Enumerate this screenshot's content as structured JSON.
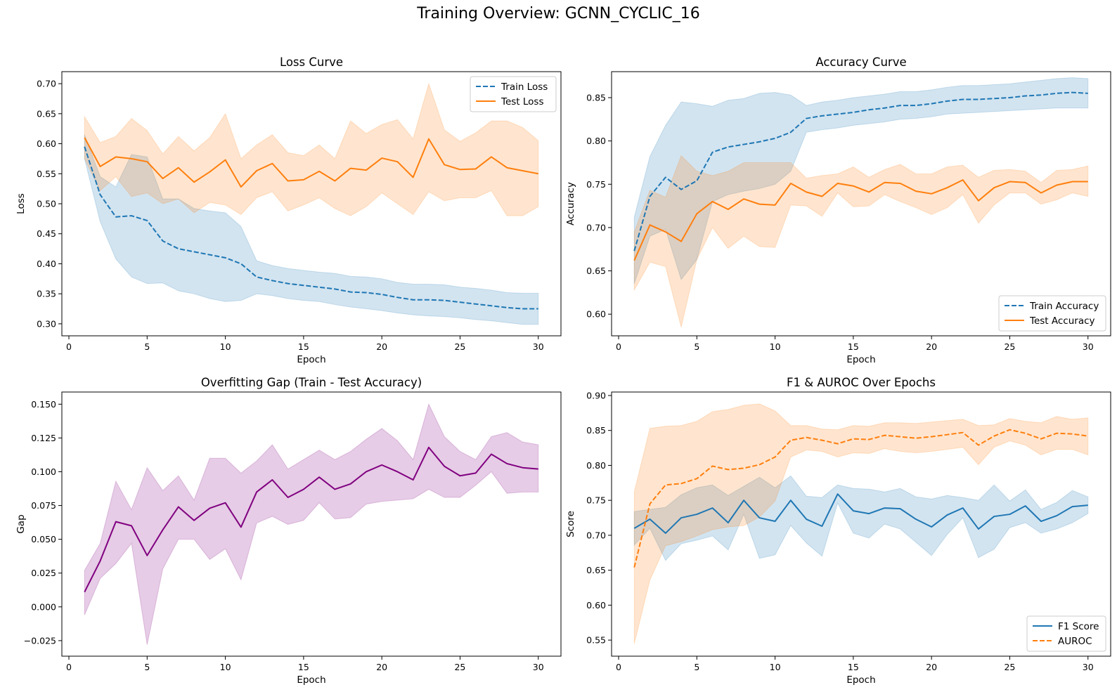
{
  "figure": {
    "suptitle": "Training Overview: GCNN_CYCLIC_16"
  },
  "colors": {
    "blue": "#1f77b4",
    "orange": "#ff7f0e",
    "purple": "#800080"
  },
  "chart_data": [
    {
      "id": "loss",
      "type": "line",
      "title": "Loss Curve",
      "xlabel": "Epoch",
      "ylabel": "Loss",
      "xlim": [
        -0.45,
        31.45
      ],
      "ylim": [
        0.28,
        0.72
      ],
      "xticks": [
        0,
        5,
        10,
        15,
        20,
        25,
        30
      ],
      "yticks": [
        0.3,
        0.35,
        0.4,
        0.45,
        0.5,
        0.55,
        0.6,
        0.65,
        0.7
      ],
      "ytick_labels": [
        "0.30",
        "0.35",
        "0.40",
        "0.45",
        "0.50",
        "0.55",
        "0.60",
        "0.65",
        "0.70"
      ],
      "legend": "top-right",
      "x": [
        1,
        2,
        3,
        4,
        5,
        6,
        7,
        8,
        9,
        10,
        11,
        12,
        13,
        14,
        15,
        16,
        17,
        18,
        19,
        20,
        21,
        22,
        23,
        24,
        25,
        26,
        27,
        28,
        29,
        30
      ],
      "series": [
        {
          "name": "Train Loss",
          "color": "blue",
          "dash": true,
          "values": [
            0.595,
            0.515,
            0.478,
            0.48,
            0.472,
            0.438,
            0.425,
            0.42,
            0.415,
            0.41,
            0.4,
            0.378,
            0.372,
            0.367,
            0.364,
            0.361,
            0.358,
            0.353,
            0.352,
            0.349,
            0.344,
            0.34,
            0.34,
            0.339,
            0.336,
            0.333,
            0.33,
            0.327,
            0.325,
            0.325
          ],
          "lower": [
            0.575,
            0.47,
            0.408,
            0.378,
            0.367,
            0.368,
            0.355,
            0.35,
            0.342,
            0.337,
            0.339,
            0.35,
            0.347,
            0.342,
            0.339,
            0.337,
            0.332,
            0.328,
            0.325,
            0.322,
            0.318,
            0.315,
            0.313,
            0.312,
            0.31,
            0.307,
            0.305,
            0.302,
            0.299,
            0.299
          ],
          "upper": [
            0.615,
            0.545,
            0.528,
            0.582,
            0.578,
            0.508,
            0.508,
            0.492,
            0.488,
            0.485,
            0.462,
            0.405,
            0.397,
            0.392,
            0.389,
            0.386,
            0.384,
            0.379,
            0.378,
            0.375,
            0.369,
            0.366,
            0.366,
            0.365,
            0.361,
            0.359,
            0.356,
            0.352,
            0.351,
            0.351
          ]
        },
        {
          "name": "Test Loss",
          "color": "orange",
          "dash": false,
          "values": [
            0.61,
            0.562,
            0.578,
            0.575,
            0.57,
            0.542,
            0.56,
            0.536,
            0.553,
            0.573,
            0.528,
            0.555,
            0.567,
            0.538,
            0.54,
            0.554,
            0.538,
            0.559,
            0.556,
            0.576,
            0.57,
            0.544,
            0.608,
            0.565,
            0.557,
            0.558,
            0.578,
            0.56,
            0.555,
            0.55
          ],
          "lower": [
            0.575,
            0.522,
            0.545,
            0.512,
            0.518,
            0.5,
            0.508,
            0.485,
            0.502,
            0.498,
            0.482,
            0.51,
            0.52,
            0.488,
            0.498,
            0.51,
            0.492,
            0.48,
            0.495,
            0.518,
            0.5,
            0.482,
            0.52,
            0.505,
            0.51,
            0.51,
            0.522,
            0.48,
            0.48,
            0.495
          ],
          "upper": [
            0.645,
            0.602,
            0.612,
            0.642,
            0.622,
            0.583,
            0.612,
            0.588,
            0.61,
            0.65,
            0.575,
            0.598,
            0.615,
            0.585,
            0.58,
            0.598,
            0.575,
            0.638,
            0.617,
            0.632,
            0.64,
            0.608,
            0.7,
            0.623,
            0.604,
            0.618,
            0.638,
            0.638,
            0.627,
            0.605
          ]
        }
      ]
    },
    {
      "id": "accuracy",
      "type": "line",
      "title": "Accuracy Curve",
      "xlabel": "Epoch",
      "ylabel": "Accuracy",
      "xlim": [
        -0.45,
        31.45
      ],
      "ylim": [
        0.575,
        0.88
      ],
      "xticks": [
        0,
        5,
        10,
        15,
        20,
        25,
        30
      ],
      "yticks": [
        0.6,
        0.65,
        0.7,
        0.75,
        0.8,
        0.85
      ],
      "ytick_labels": [
        "0.60",
        "0.65",
        "0.70",
        "0.75",
        "0.80",
        "0.85"
      ],
      "legend": "bottom-right",
      "x": [
        1,
        2,
        3,
        4,
        5,
        6,
        7,
        8,
        9,
        10,
        11,
        12,
        13,
        14,
        15,
        16,
        17,
        18,
        19,
        20,
        21,
        22,
        23,
        24,
        25,
        26,
        27,
        28,
        29,
        30
      ],
      "series": [
        {
          "name": "Train Accuracy",
          "color": "blue",
          "dash": true,
          "values": [
            0.673,
            0.736,
            0.758,
            0.744,
            0.754,
            0.787,
            0.793,
            0.796,
            0.799,
            0.803,
            0.81,
            0.826,
            0.829,
            0.831,
            0.833,
            0.836,
            0.838,
            0.841,
            0.841,
            0.843,
            0.846,
            0.848,
            0.848,
            0.849,
            0.85,
            0.852,
            0.853,
            0.855,
            0.856,
            0.855
          ],
          "lower": [
            0.635,
            0.69,
            0.698,
            0.64,
            0.663,
            0.73,
            0.738,
            0.742,
            0.745,
            0.75,
            0.765,
            0.81,
            0.813,
            0.815,
            0.818,
            0.82,
            0.822,
            0.825,
            0.826,
            0.828,
            0.831,
            0.832,
            0.833,
            0.834,
            0.835,
            0.836,
            0.837,
            0.838,
            0.838,
            0.838
          ],
          "upper": [
            0.712,
            0.782,
            0.818,
            0.845,
            0.843,
            0.84,
            0.847,
            0.849,
            0.855,
            0.856,
            0.853,
            0.841,
            0.845,
            0.847,
            0.85,
            0.852,
            0.854,
            0.857,
            0.857,
            0.859,
            0.862,
            0.864,
            0.864,
            0.865,
            0.866,
            0.868,
            0.87,
            0.872,
            0.873,
            0.872
          ]
        },
        {
          "name": "Test Accuracy",
          "color": "orange",
          "dash": false,
          "values": [
            0.662,
            0.703,
            0.695,
            0.684,
            0.716,
            0.73,
            0.721,
            0.733,
            0.727,
            0.726,
            0.751,
            0.741,
            0.736,
            0.751,
            0.748,
            0.741,
            0.752,
            0.751,
            0.742,
            0.739,
            0.746,
            0.755,
            0.731,
            0.746,
            0.753,
            0.752,
            0.74,
            0.749,
            0.753,
            0.753
          ],
          "lower": [
            0.628,
            0.66,
            0.655,
            0.585,
            0.663,
            0.7,
            0.676,
            0.69,
            0.678,
            0.677,
            0.726,
            0.725,
            0.713,
            0.74,
            0.724,
            0.725,
            0.738,
            0.73,
            0.723,
            0.715,
            0.723,
            0.738,
            0.705,
            0.726,
            0.74,
            0.74,
            0.727,
            0.732,
            0.74,
            0.736
          ],
          "upper": [
            0.695,
            0.743,
            0.735,
            0.783,
            0.765,
            0.76,
            0.765,
            0.775,
            0.775,
            0.775,
            0.775,
            0.757,
            0.76,
            0.762,
            0.77,
            0.758,
            0.767,
            0.773,
            0.762,
            0.762,
            0.77,
            0.772,
            0.758,
            0.766,
            0.767,
            0.765,
            0.752,
            0.766,
            0.767,
            0.771
          ]
        }
      ]
    },
    {
      "id": "gap",
      "type": "line",
      "title": "Overfitting Gap (Train - Test Accuracy)",
      "xlabel": "Epoch",
      "ylabel": "Gap",
      "xlim": [
        -0.45,
        31.45
      ],
      "ylim": [
        -0.0365,
        0.159
      ],
      "xticks": [
        0,
        5,
        10,
        15,
        20,
        25,
        30
      ],
      "yticks": [
        -0.025,
        0.0,
        0.025,
        0.05,
        0.075,
        0.1,
        0.125,
        0.15
      ],
      "ytick_labels": [
        "−0.025",
        "0.000",
        "0.025",
        "0.050",
        "0.075",
        "0.100",
        "0.125",
        "0.150"
      ],
      "legend": "none",
      "x": [
        1,
        2,
        3,
        4,
        5,
        6,
        7,
        8,
        9,
        10,
        11,
        12,
        13,
        14,
        15,
        16,
        17,
        18,
        19,
        20,
        21,
        22,
        23,
        24,
        25,
        26,
        27,
        28,
        29,
        30
      ],
      "series": [
        {
          "name": "Gap",
          "color": "purple",
          "dash": false,
          "values": [
            0.011,
            0.034,
            0.063,
            0.06,
            0.038,
            0.057,
            0.074,
            0.064,
            0.073,
            0.077,
            0.059,
            0.085,
            0.094,
            0.081,
            0.087,
            0.096,
            0.087,
            0.091,
            0.1,
            0.105,
            0.1,
            0.094,
            0.118,
            0.104,
            0.097,
            0.099,
            0.113,
            0.106,
            0.103,
            0.102
          ],
          "lower": [
            -0.006,
            0.021,
            0.032,
            0.047,
            -0.028,
            0.028,
            0.05,
            0.05,
            0.035,
            0.043,
            0.02,
            0.062,
            0.067,
            0.061,
            0.064,
            0.077,
            0.065,
            0.066,
            0.076,
            0.078,
            0.079,
            0.08,
            0.087,
            0.081,
            0.081,
            0.09,
            0.1,
            0.084,
            0.085,
            0.085
          ],
          "upper": [
            0.027,
            0.047,
            0.093,
            0.072,
            0.103,
            0.086,
            0.097,
            0.079,
            0.11,
            0.11,
            0.099,
            0.108,
            0.12,
            0.102,
            0.109,
            0.116,
            0.109,
            0.115,
            0.124,
            0.132,
            0.123,
            0.109,
            0.15,
            0.126,
            0.115,
            0.109,
            0.126,
            0.129,
            0.122,
            0.12
          ]
        }
      ]
    },
    {
      "id": "f1auroc",
      "type": "line",
      "title": "F1 & AUROC Over Epochs",
      "xlabel": "Epoch",
      "ylabel": "Score",
      "xlim": [
        -0.45,
        31.45
      ],
      "ylim": [
        0.527,
        0.905
      ],
      "xticks": [
        0,
        5,
        10,
        15,
        20,
        25,
        30
      ],
      "yticks": [
        0.55,
        0.6,
        0.65,
        0.7,
        0.75,
        0.8,
        0.85,
        0.9
      ],
      "ytick_labels": [
        "0.55",
        "0.60",
        "0.65",
        "0.70",
        "0.75",
        "0.80",
        "0.85",
        "0.90"
      ],
      "legend": "bottom-right",
      "x": [
        1,
        2,
        3,
        4,
        5,
        6,
        7,
        8,
        9,
        10,
        11,
        12,
        13,
        14,
        15,
        16,
        17,
        18,
        19,
        20,
        21,
        22,
        23,
        24,
        25,
        26,
        27,
        28,
        29,
        30
      ],
      "series": [
        {
          "name": "F1 Score",
          "color": "blue",
          "dash": false,
          "values": [
            0.71,
            0.723,
            0.703,
            0.725,
            0.73,
            0.739,
            0.718,
            0.75,
            0.725,
            0.72,
            0.75,
            0.723,
            0.713,
            0.759,
            0.735,
            0.731,
            0.739,
            0.738,
            0.723,
            0.712,
            0.729,
            0.739,
            0.709,
            0.727,
            0.73,
            0.742,
            0.72,
            0.728,
            0.741,
            0.743
          ],
          "lower": [
            0.686,
            0.71,
            0.664,
            0.688,
            0.693,
            0.699,
            0.679,
            0.73,
            0.667,
            0.672,
            0.714,
            0.689,
            0.67,
            0.746,
            0.703,
            0.696,
            0.716,
            0.709,
            0.69,
            0.671,
            0.701,
            0.725,
            0.668,
            0.68,
            0.711,
            0.718,
            0.703,
            0.709,
            0.718,
            0.731
          ],
          "upper": [
            0.734,
            0.737,
            0.74,
            0.758,
            0.768,
            0.772,
            0.757,
            0.77,
            0.783,
            0.768,
            0.785,
            0.756,
            0.754,
            0.772,
            0.767,
            0.766,
            0.762,
            0.767,
            0.755,
            0.752,
            0.757,
            0.754,
            0.75,
            0.772,
            0.749,
            0.765,
            0.737,
            0.747,
            0.764,
            0.755
          ]
        },
        {
          "name": "AUROC",
          "color": "orange",
          "dash": true,
          "values": [
            0.654,
            0.745,
            0.772,
            0.774,
            0.781,
            0.799,
            0.794,
            0.796,
            0.801,
            0.812,
            0.836,
            0.84,
            0.836,
            0.831,
            0.838,
            0.837,
            0.843,
            0.841,
            0.839,
            0.841,
            0.844,
            0.847,
            0.829,
            0.842,
            0.851,
            0.846,
            0.838,
            0.846,
            0.845,
            0.842
          ],
          "lower": [
            0.545,
            0.636,
            0.685,
            0.691,
            0.699,
            0.708,
            0.712,
            0.714,
            0.726,
            0.749,
            0.812,
            0.822,
            0.82,
            0.812,
            0.818,
            0.817,
            0.824,
            0.82,
            0.818,
            0.82,
            0.823,
            0.826,
            0.801,
            0.826,
            0.835,
            0.829,
            0.815,
            0.823,
            0.823,
            0.815
          ],
          "upper": [
            0.762,
            0.853,
            0.856,
            0.857,
            0.863,
            0.877,
            0.88,
            0.886,
            0.888,
            0.878,
            0.857,
            0.857,
            0.852,
            0.851,
            0.857,
            0.856,
            0.861,
            0.861,
            0.86,
            0.862,
            0.864,
            0.866,
            0.857,
            0.858,
            0.867,
            0.863,
            0.861,
            0.87,
            0.866,
            0.868
          ]
        }
      ]
    }
  ]
}
